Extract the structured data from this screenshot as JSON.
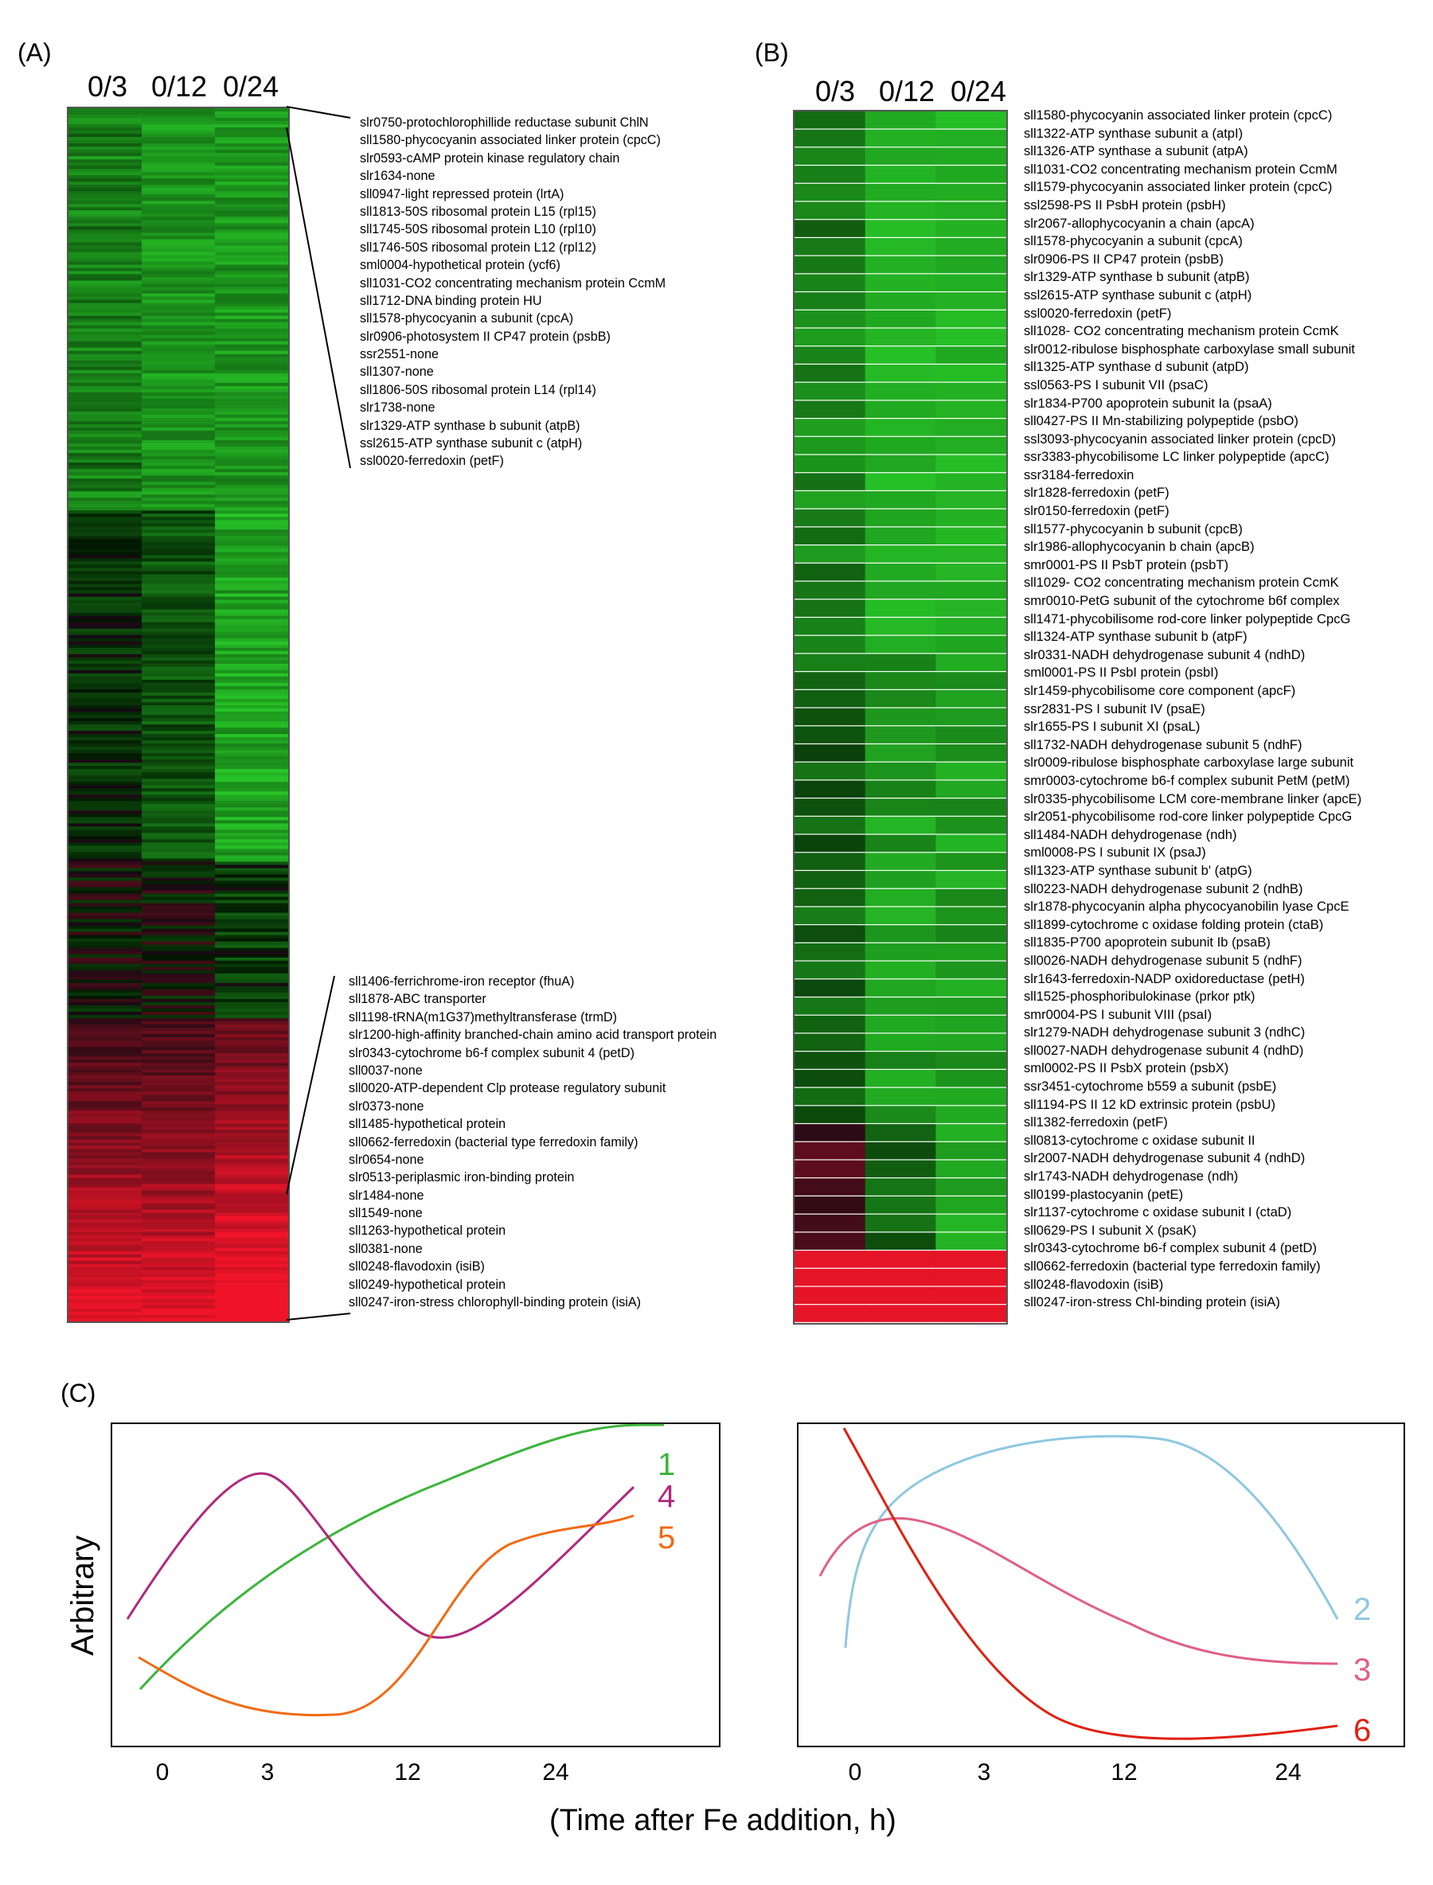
{
  "panel_a": {
    "label": "(A)",
    "columns": [
      "0/3",
      "0/12",
      "0/24"
    ],
    "top_genes": [
      "slr0750-protochlorophillide reductase subunit ChlN",
      "sll1580-phycocyanin associated linker protein (cpcC)",
      "slr0593-cAMP protein kinase regulatory chain",
      "slr1634-none",
      "sll0947-light repressed protein (lrtA)",
      "sll1813-50S ribosomal protein L15 (rpl15)",
      "sll1745-50S ribosomal protein L10 (rpl10)",
      "sll1746-50S ribosomal protein L12 (rpl12)",
      "sml0004-hypothetical protein (ycf6)",
      "sll1031-CO2 concentrating mechanism protein CcmM",
      "sll1712-DNA binding protein HU",
      "sll1578-phycocyanin a subunit (cpcA)",
      "slr0906-photosystem II CP47 protein (psbB)",
      "ssr2551-none",
      "sll1307-none",
      "sll1806-50S ribosomal protein L14 (rpl14)",
      "slr1738-none",
      "slr1329-ATP synthase b subunit (atpB)",
      "ssl2615-ATP synthase subunit c (atpH)",
      "ssl0020-ferredoxin (petF)"
    ],
    "bottom_genes": [
      "sll1406-ferrichrome-iron receptor (fhuA)",
      "sll1878-ABC transporter",
      "sll1198-tRNA(m1G37)methyltransferase (trmD)",
      "slr1200-high-affinity branched-chain amino acid transport protein",
      "slr0343-cytochrome b6-f complex subunit 4 (petD)",
      "sll0037-none",
      "sll0020-ATP-dependent Clp protease regulatory subunit",
      "slr0373-none",
      "sll1485-hypothetical protein",
      "sll0662-ferredoxin (bacterial type ferredoxin family)",
      "slr0654-none",
      "slr0513-periplasmic iron-binding protein",
      "slr1484-none",
      "sll1549-none",
      "sll1263-hypothetical protein",
      "sll0381-none",
      "sll0248-flavodoxin (isiB)",
      "sll0249-hypothetical protein",
      "sll0247-iron-stress chlorophyll-binding protein (isiA)"
    ]
  },
  "panel_b": {
    "label": "(B)",
    "columns": [
      "0/3",
      "0/12",
      "0/24"
    ],
    "genes": [
      "sll1580-phycocyanin associated linker protein (cpcC)",
      "sll1322-ATP synthase subunit a (atpI)",
      "sll1326-ATP synthase a subunit (atpA)",
      "sll1031-CO2 concentrating mechanism protein CcmM",
      "sll1579-phycocyanin associated linker protein (cpcC)",
      "ssl2598-PS II PsbH protein (psbH)",
      "slr2067-allophycocyanin a chain (apcA)",
      "sll1578-phycocyanin a subunit (cpcA)",
      "slr0906-PS II CP47 protein (psbB)",
      "slr1329-ATP synthase b subunit (atpB)",
      "ssl2615-ATP synthase subunit c (atpH)",
      "ssl0020-ferredoxin (petF)",
      "sll1028- CO2 concentrating mechanism protein CcmK",
      "slr0012-ribulose bisphosphate carboxylase small subunit",
      "sll1325-ATP synthase d subunit (atpD)",
      "ssl0563-PS I subunit VII (psaC)",
      "slr1834-P700 apoprotein subunit Ia (psaA)",
      "sll0427-PS II Mn-stabilizing polypeptide (psbO)",
      "ssl3093-phycocyanin associated linker protein (cpcD)",
      "ssr3383-phycobilisome LC linker polypeptide (apcC)",
      "ssr3184-ferredoxin",
      "slr1828-ferredoxin (petF)",
      "slr0150-ferredoxin (petF)",
      "sll1577-phycocyanin b subunit (cpcB)",
      "slr1986-allophycocyanin b chain (apcB)",
      "smr0001-PS II PsbT protein (psbT)",
      "sll1029- CO2 concentrating mechanism protein CcmK",
      "smr0010-PetG subunit of the cytochrome b6f complex",
      "sll1471-phycobilisome rod-core linker polypeptide CpcG",
      "sll1324-ATP synthase subunit b (atpF)",
      "slr0331-NADH dehydrogenase subunit 4 (ndhD)",
      "sml0001-PS II PsbI protein (psbI)",
      "slr1459-phycobilisome core component (apcF)",
      "ssr2831-PS I subunit IV (psaE)",
      "slr1655-PS I subunit XI (psaL)",
      "sll1732-NADH dehydrogenase subunit 5 (ndhF)",
      "slr0009-ribulose bisphosphate carboxylase large subunit",
      "smr0003-cytochrome b6-f complex subunit PetM (petM)",
      "slr0335-phycobilisome LCM core-membrane linker (apcE)",
      "slr2051-phycobilisome rod-core linker polypeptide CpcG",
      "sll1484-NADH dehydrogenase (ndh)",
      "sml0008-PS I subunit IX (psaJ)",
      "sll1323-ATP synthase subunit b' (atpG)",
      "sll0223-NADH dehydrogenase subunit 2 (ndhB)",
      "slr1878-phycocyanin alpha phycocyanobilin lyase CpcE",
      "sll1899-cytochrome c oxidase folding protein (ctaB)",
      "sll1835-P700 apoprotein subunit Ib (psaB)",
      "sll0026-NADH dehydrogenase subunit 5 (ndhF)",
      "slr1643-ferredoxin-NADP oxidoreductase (petH)",
      "sll1525-phosphoribulokinase (prkor ptk)",
      "smr0004-PS I subunit VIII (psaI)",
      "slr1279-NADH dehydrogenase subunit 3 (ndhC)",
      "sll0027-NADH dehydrogenase subunit 4 (ndhD)",
      "sml0002-PS II PsbX protein (psbX)",
      "ssr3451-cytochrome b559 a subunit (psbE)",
      "sll1194-PS II 12 kD extrinsic protein (psbU)",
      "sll1382-ferredoxin (petF)",
      "sll0813-cytochrome c oxidase subunit II",
      "slr2007-NADH dehydrogenase subunit 4 (ndhD)",
      "slr1743-NADH dehydrogenase (ndh)",
      "sll0199-plastocyanin (petE)",
      "slr1137-cytochrome c oxidase subunit I (ctaD)",
      "sll0629-PS I subunit X (psaK)",
      "slr0343-cytochrome b6-f complex subunit 4 (petD)",
      "sll0662-ferredoxin (bacterial type ferredoxin family)",
      "sll0248-flavodoxin (isiB)",
      "sll0247-iron-stress Chl-binding protein (isiA)"
    ]
  },
  "panel_c": {
    "label": "(C)",
    "ylabel": "Arbitrary",
    "xlabel": "(Time after Fe addition, h)"
  },
  "chart_data": [
    {
      "type": "line",
      "x_ticks": [
        "0",
        "3",
        "12",
        "24"
      ],
      "y_label": "Arbitrary",
      "series": [
        {
          "name": "1",
          "color": "#3cb43c",
          "trend": "rises steadily from lowest at start to a plateau at the end"
        },
        {
          "name": "4",
          "color": "#b0287d",
          "trend": "peak near 3 h, minimum between 12 and 24 h, rises again at the end"
        },
        {
          "name": "5",
          "color": "#f06a14",
          "trend": "declines to a minimum after 3 h, rises strongly after 12 h"
        }
      ]
    },
    {
      "type": "line",
      "x_ticks": [
        "0",
        "3",
        "12",
        "24"
      ],
      "series": [
        {
          "name": "2",
          "color": "#8ec8e0",
          "trend": "rises sharply after 0, broad maximum near 12 h, declines toward the end"
        },
        {
          "name": "3",
          "color": "#e05f86",
          "trend": "small peak just after 0, gradual decline, flat at the end"
        },
        {
          "name": "6",
          "color": "#e02010",
          "trend": "highest at start, falls steeply, minimum near 12 h, slight rise at end"
        }
      ]
    }
  ]
}
